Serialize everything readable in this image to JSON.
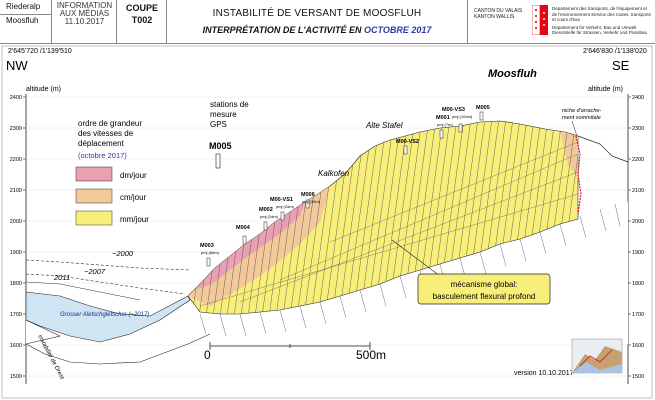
{
  "header": {
    "place_top": "Riederalp",
    "place_bottom": "Moosfluh",
    "info_line1": "INFORMATION",
    "info_line2": "AUX MÉDIAS",
    "info_date": "11.10.2017",
    "section_line1": "COUPE",
    "section_line2": "T002",
    "title": "INSTABILITÉ DE VERSANT DE MOOSFLUH",
    "subtitle_main": "INTERPRÉTATION DE L'ACTIVITÉ EN",
    "subtitle_highlight": "OCTOBRE 2017",
    "canton_name": "CANTON DU VALAIS KANTON WALLIS",
    "dept_fr": "Département des transports, de l'équipement et de l'environnement Service des routes, transports et cours d'eau",
    "dept_de": "Departement für Verkehr, Bau und Umwelt Dienststelle für Strassen, Verkehr und Flussbau",
    "accent_color": "#e30613"
  },
  "section": {
    "coord_left": "2'645'720 /1'139'510",
    "coord_right": "2'646'830 /1'138'020",
    "dir_left": "NW",
    "dir_right": "SE",
    "place_title": "Moosfluh",
    "axis_label_left": "altitude (m)",
    "axis_label_right": "altitude (m)",
    "axis_ticks": [
      "2400",
      "2300",
      "2200",
      "2100",
      "2000",
      "1900",
      "1800",
      "1700",
      "1600",
      "1500"
    ],
    "scale_start": "0",
    "scale_end": "500m",
    "version": "version 10.10.2017"
  },
  "legend": {
    "title_line1": "ordre de grandeur",
    "title_line2": "des vitesses de",
    "title_line3": "déplacement",
    "period": "(octobre 2017)",
    "period_color": "#2b3aa6",
    "items": [
      {
        "label": "dm/jour",
        "color": "#e8a0b2"
      },
      {
        "label": "cm/jour",
        "color": "#f3c99a"
      },
      {
        "label": "mm/jour",
        "color": "#f8ef7a"
      }
    ]
  },
  "gps": {
    "title_line1": "stations de",
    "title_line2": "mesure",
    "title_line3": "GPS",
    "example": "M005",
    "stations": [
      {
        "name": "M003",
        "rate": "pmj (8dm)"
      },
      {
        "name": "M004",
        "rate": ""
      },
      {
        "name": "M002",
        "rate": "pmj (2dm)"
      },
      {
        "name": "M00-VS1",
        "rate": "pmj (2dm)"
      },
      {
        "name": "M006",
        "rate": "pmj (30m)"
      },
      {
        "name": "M00-VS2",
        "rate": ""
      },
      {
        "name": "M001",
        "rate": "pmj (7m)"
      },
      {
        "name": "M00-VS3",
        "rate": "pmj (10dm)"
      },
      {
        "name": "M005",
        "rate": ""
      }
    ]
  },
  "annotations": {
    "kalkofen": "Kalkofen",
    "alte_stafel": "Alte Stafel",
    "niche_line1": "niche d'arrache-",
    "niche_line2": "ment sommitale",
    "glacier_2000": "~2000",
    "glacier_2007": "~2007",
    "glacier_2011": "2011",
    "glacier_2017": "Grosser Aletschgletscher (~2017)",
    "drest": "instabilité de Drest",
    "mechanism_line1": "mécanisme global:",
    "mechanism_line2": "basculement flexural profond"
  }
}
